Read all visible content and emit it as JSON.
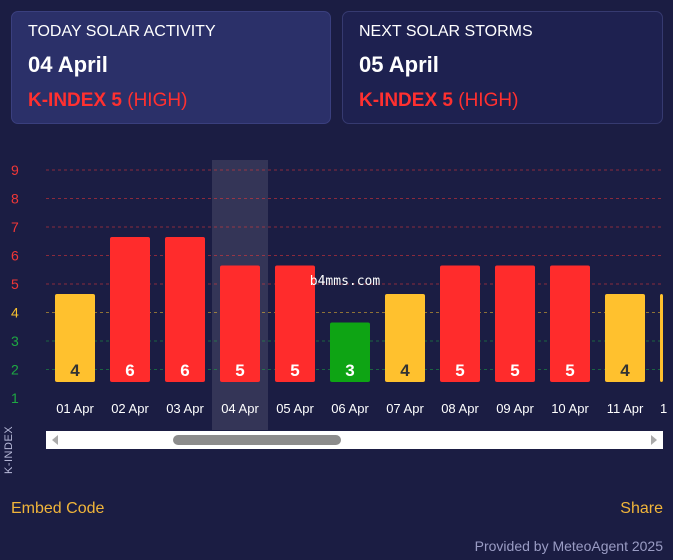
{
  "today": {
    "title": "TODAY SOLAR ACTIVITY",
    "date": "04 April",
    "kindex": "K-INDEX 5",
    "level": "(HIGH)"
  },
  "next": {
    "title": "NEXT SOLAR STORMS",
    "date": "05 April",
    "kindex": "K-INDEX 5",
    "level": "(HIGH)"
  },
  "chart_data": {
    "type": "bar",
    "ylabel": "K-INDEX",
    "ylim": [
      1,
      9
    ],
    "categories": [
      "01 Apr",
      "02 Apr",
      "03 Apr",
      "04 Apr",
      "05 Apr",
      "06 Apr",
      "07 Apr",
      "08 Apr",
      "09 Apr",
      "10 Apr",
      "11 Apr",
      "1"
    ],
    "values": [
      4,
      6,
      6,
      5,
      5,
      3,
      4,
      5,
      5,
      5,
      4,
      4
    ],
    "data_labels": [
      "4",
      "6",
      "6",
      "5",
      "5",
      "3",
      "4",
      "5",
      "5",
      "5",
      "4",
      ""
    ],
    "y_ticks": [
      {
        "label": "1",
        "color": "#1ea843"
      },
      {
        "label": "2",
        "color": "#1ea843"
      },
      {
        "label": "3",
        "color": "#1ea843"
      },
      {
        "label": "4",
        "color": "#f6bf2e"
      },
      {
        "label": "5",
        "color": "#f03737"
      },
      {
        "label": "6",
        "color": "#f03737"
      },
      {
        "label": "7",
        "color": "#f03737"
      },
      {
        "label": "8",
        "color": "#f03737"
      },
      {
        "label": "9",
        "color": "#f03737"
      }
    ],
    "highlighted_category": "04 Apr",
    "colors": {
      "low": "#0ea414",
      "moderate": "#ffc12e",
      "high": "#ff2c2c"
    },
    "grid": true,
    "legend": "none"
  },
  "scrollbar": {
    "left_icon": "chevron-left-icon",
    "right_icon": "chevron-right-icon"
  },
  "footer": {
    "embed": "Embed Code",
    "share": "Share",
    "provided": "Provided by MeteoAgent 2025"
  },
  "watermark": "b4mms.com"
}
